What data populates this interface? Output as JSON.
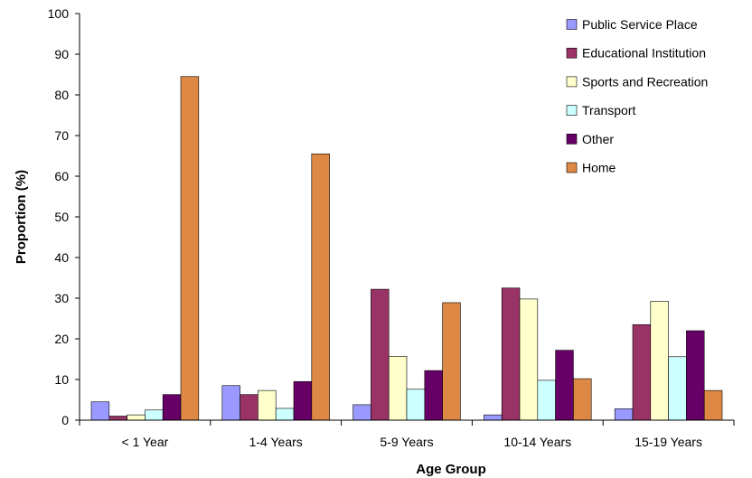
{
  "chart_data": {
    "type": "bar",
    "title": "",
    "xlabel": "Age Group",
    "ylabel": "Proportion (%)",
    "ylim": [
      0,
      100
    ],
    "yticks": [
      0,
      10,
      20,
      30,
      40,
      50,
      60,
      70,
      80,
      90,
      100
    ],
    "categories": [
      "< 1 Year",
      "1-4 Years",
      "5-9 Years",
      "10-14 Years",
      "15-19 Years"
    ],
    "legend_position": "top-right",
    "grid": false,
    "series": [
      {
        "name": "Public Service Place",
        "color": "#9999ff",
        "values": [
          4.5,
          8.5,
          3.8,
          1.3,
          2.8
        ]
      },
      {
        "name": "Educational Institution",
        "color": "#993366",
        "values": [
          1.0,
          6.3,
          32.2,
          32.5,
          23.5
        ]
      },
      {
        "name": "Sports and Recreation",
        "color": "#ffffcc",
        "values": [
          1.3,
          7.3,
          15.7,
          29.8,
          29.2
        ]
      },
      {
        "name": "Transport",
        "color": "#ccffff",
        "values": [
          2.5,
          2.9,
          7.6,
          9.8,
          15.6
        ]
      },
      {
        "name": "Other",
        "color": "#660066",
        "values": [
          6.3,
          9.5,
          12.2,
          17.2,
          22.0
        ]
      },
      {
        "name": "Home",
        "color": "#dd8844",
        "values": [
          84.5,
          65.5,
          28.9,
          10.2,
          7.3
        ]
      }
    ]
  }
}
